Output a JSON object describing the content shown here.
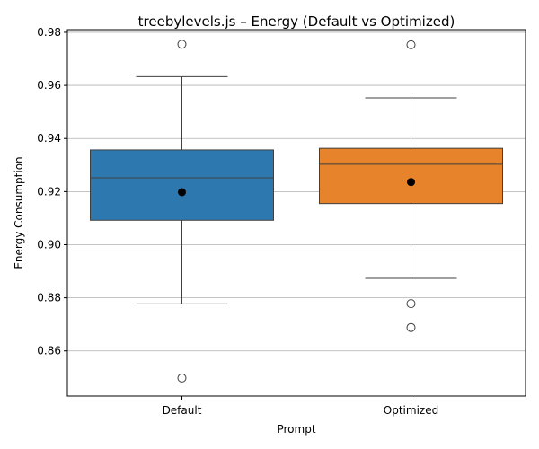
{
  "chart_data": {
    "type": "box",
    "title": "treebylevels.js – Energy (Default vs Optimized)",
    "xlabel": "Prompt",
    "ylabel": "Energy Consumption",
    "ylim": [
      0.843,
      0.981
    ],
    "yticks": [
      0.86,
      0.88,
      0.9,
      0.92,
      0.94,
      0.96,
      0.98
    ],
    "ytick_labels": [
      "0.86",
      "0.88",
      "0.90",
      "0.92",
      "0.94",
      "0.96",
      "0.98"
    ],
    "grid": "horizontal",
    "categories": [
      "Default",
      "Optimized"
    ],
    "boxes": [
      {
        "category": "Default",
        "color": "#2e78b0",
        "whisker_low": 0.8777,
        "q1": 0.9092,
        "median": 0.9252,
        "q3": 0.9357,
        "whisker_high": 0.9633,
        "mean": 0.9198,
        "outliers": [
          0.9755,
          0.8498
        ]
      },
      {
        "category": "Optimized",
        "color": "#e7832b",
        "whisker_low": 0.8873,
        "q1": 0.9155,
        "median": 0.9303,
        "q3": 0.9363,
        "whisker_high": 0.9553,
        "mean": 0.9236,
        "outliers": [
          0.9753,
          0.8778,
          0.8688
        ]
      }
    ]
  }
}
